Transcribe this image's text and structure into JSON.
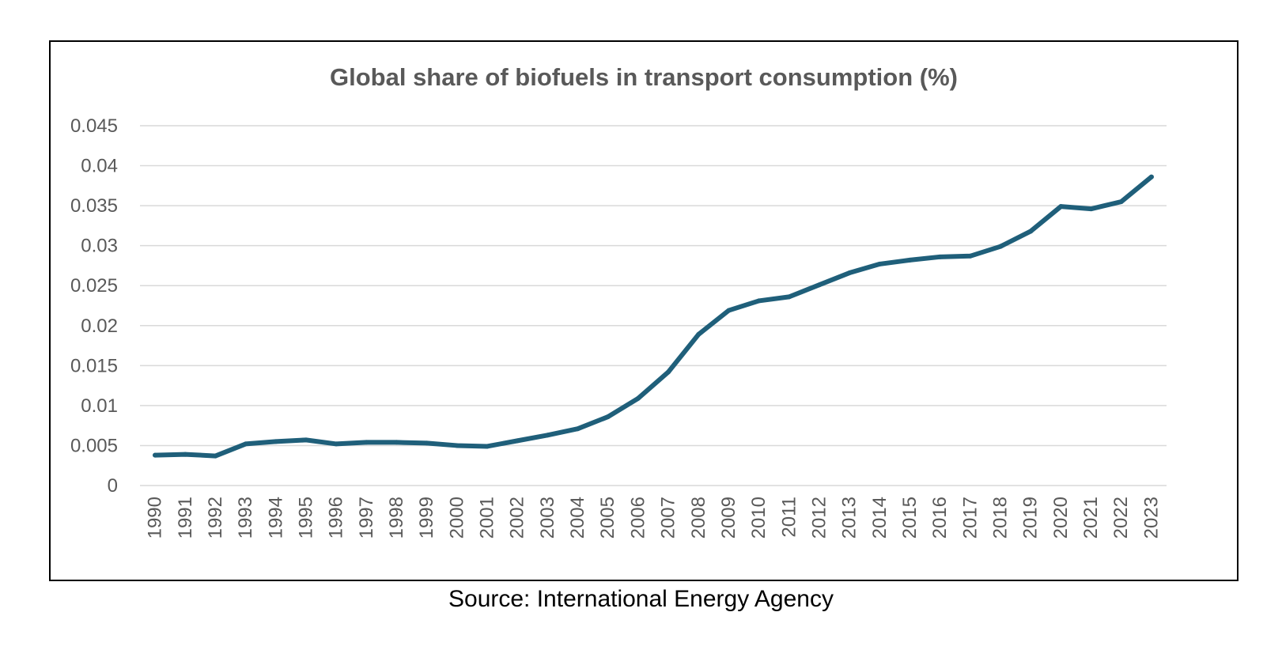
{
  "chart_data": {
    "type": "line",
    "title": "Global share of biofuels in transport consumption (%)",
    "xlabel": "",
    "ylabel": "",
    "ylim": [
      0,
      0.045
    ],
    "y_ticks": [
      "0",
      "0.005",
      "0.01",
      "0.015",
      "0.02",
      "0.025",
      "0.03",
      "0.035",
      "0.04",
      "0.045"
    ],
    "y_tick_values": [
      0,
      0.005,
      0.01,
      0.015,
      0.02,
      0.025,
      0.03,
      0.035,
      0.04,
      0.045
    ],
    "grid": true,
    "categories": [
      "1990",
      "1991",
      "1992",
      "1993",
      "1994",
      "1995",
      "1996",
      "1997",
      "1998",
      "1999",
      "2000",
      "2001",
      "2002",
      "2003",
      "2004",
      "2005",
      "2006",
      "2007",
      "2008",
      "2009",
      "2010",
      "2011",
      "2012",
      "2013",
      "2014",
      "2015",
      "2016",
      "2017",
      "2018",
      "2019",
      "2020",
      "2021",
      "2022",
      "2023"
    ],
    "series": [
      {
        "name": "Global share of biofuels in transport consumption",
        "color": "#1f5f7a",
        "values": [
          0.0038,
          0.0039,
          0.0037,
          0.0052,
          0.0055,
          0.0057,
          0.0052,
          0.0054,
          0.0054,
          0.0053,
          0.005,
          0.0049,
          0.0056,
          0.0063,
          0.0071,
          0.0086,
          0.0109,
          0.0142,
          0.0189,
          0.0219,
          0.0231,
          0.0236,
          0.0251,
          0.0266,
          0.0277,
          0.0282,
          0.0286,
          0.0287,
          0.0299,
          0.0318,
          0.0349,
          0.0346,
          0.0355,
          0.0386
        ]
      }
    ]
  },
  "source": {
    "text": "Source: International Energy Agency"
  }
}
